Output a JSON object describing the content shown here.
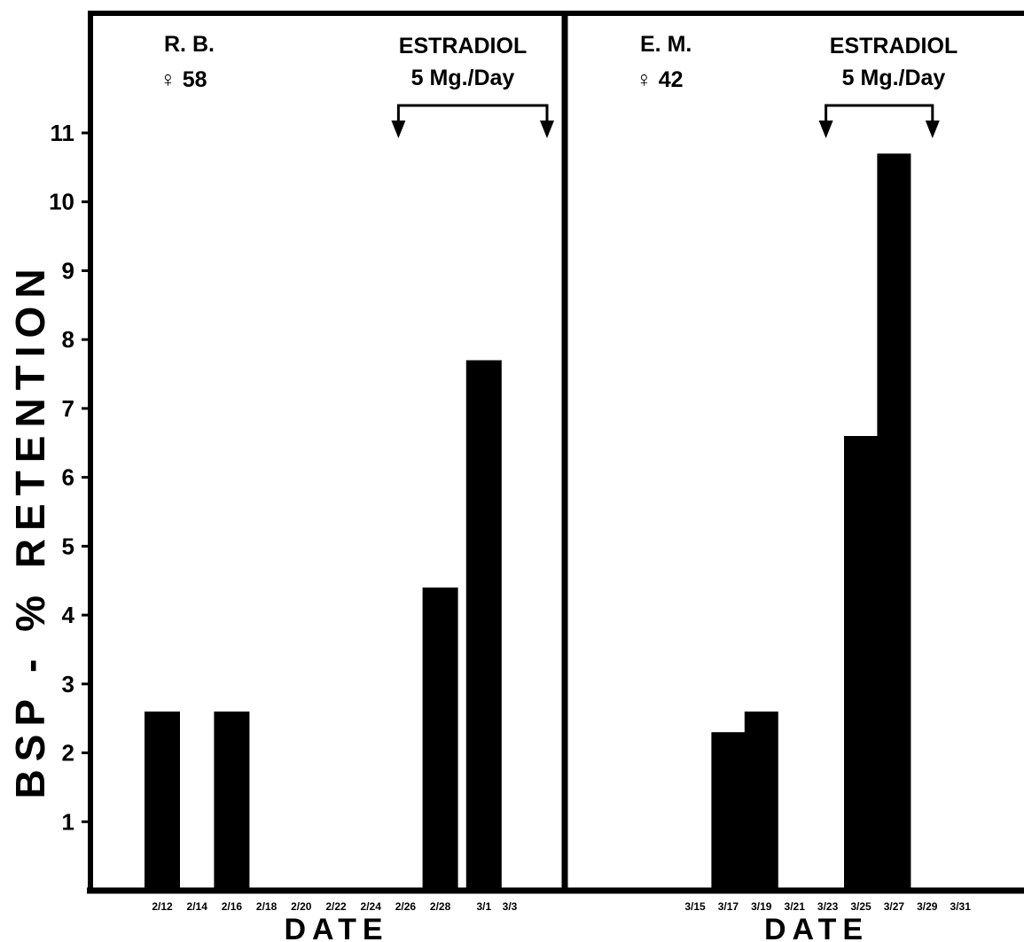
{
  "chart_data": {
    "type": "bar",
    "ylabel": "BSP - % RETENTION",
    "yticks": [
      "1",
      "2",
      "3",
      "4",
      "5",
      "6",
      "7",
      "8",
      "9",
      "10",
      "11"
    ],
    "ylim": [
      0,
      12
    ],
    "grid": false,
    "panels": [
      {
        "patient": "R. B.",
        "sex_age": "♀ 58",
        "treatment": "ESTRADIOL",
        "dose": "5 Mg./Day",
        "xlabel": "DATE",
        "categories": [
          "2/12",
          "2/14",
          "2/16",
          "2/18",
          "2/20",
          "2/22",
          "2/24",
          "2/26",
          "2/28",
          "3/1",
          "3/3"
        ],
        "values": [
          2.6,
          null,
          2.6,
          null,
          null,
          null,
          null,
          null,
          4.4,
          7.7,
          null
        ],
        "treatment_start": "2/26",
        "treatment_end": "3/3"
      },
      {
        "patient": "E. M.",
        "sex_age": "♀ 42",
        "treatment": "ESTRADIOL",
        "dose": "5 Mg./Day",
        "xlabel": "DATE",
        "categories": [
          "3/15",
          "3/17",
          "3/19",
          "3/21",
          "3/23",
          "3/25",
          "3/27",
          "3/29",
          "3/31"
        ],
        "values": [
          null,
          2.3,
          2.6,
          null,
          null,
          6.6,
          10.7,
          null,
          null
        ],
        "treatment_start": "3/23",
        "treatment_end": "3/29"
      }
    ]
  }
}
